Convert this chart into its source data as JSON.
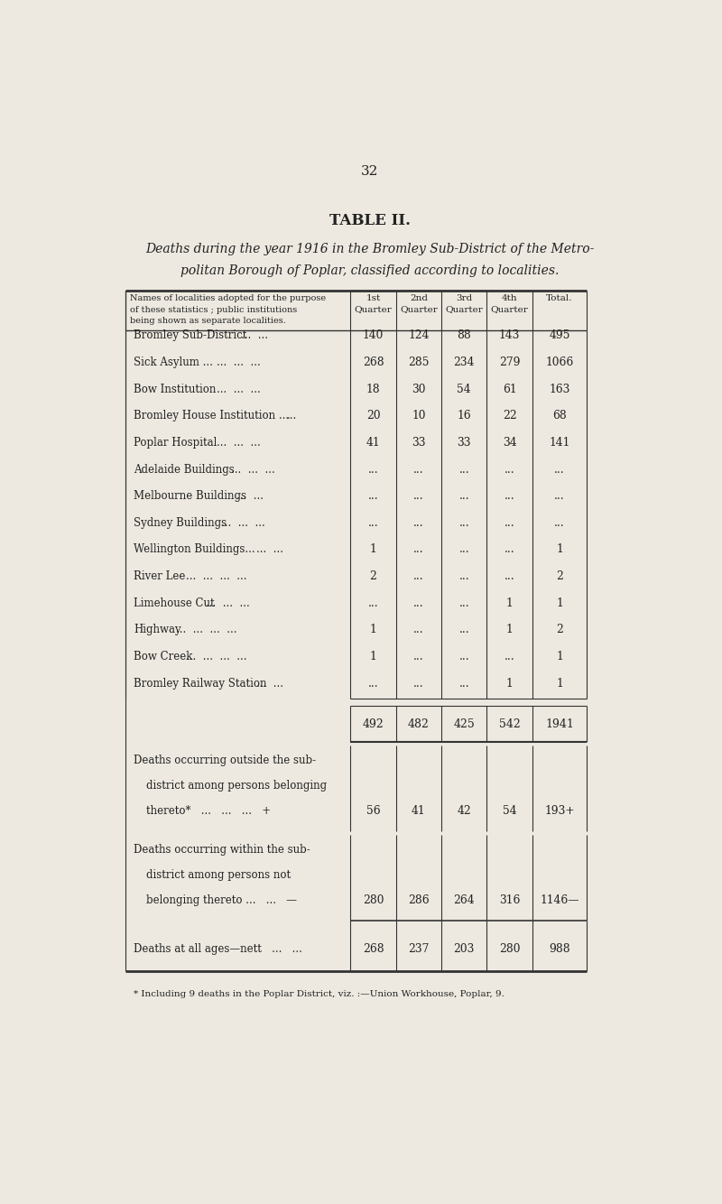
{
  "page_number": "32",
  "title": "TABLE II.",
  "subtitle_line1": "Deaths during the year 1916 in the Bromley Sub-District of the Metro-",
  "subtitle_line2": "politan Borough of Poplar, classified according to localities.",
  "data_rows": [
    {
      "name": "Bromley Sub-District",
      "dots": "...  ...",
      "q1": "140",
      "q2": "124",
      "q3": "88",
      "q4": "143",
      "total": "495"
    },
    {
      "name": "Sick Asylum ...",
      "dots": "...  ...  ...",
      "q1": "268",
      "q2": "285",
      "q3": "234",
      "q4": "279",
      "total": "1066"
    },
    {
      "name": "Bow Institution",
      "dots": "...  ...  ...",
      "q1": "18",
      "q2": "30",
      "q3": "54",
      "q4": "61",
      "total": "163"
    },
    {
      "name": "Bromley House Institution ...",
      "dots": "...",
      "q1": "20",
      "q2": "10",
      "q3": "16",
      "q4": "22",
      "total": "68"
    },
    {
      "name": "Poplar Hospital",
      "dots": "...  ...  ...",
      "q1": "41",
      "q2": "33",
      "q3": "33",
      "q4": "34",
      "total": "141"
    },
    {
      "name": "Adelaide Buildings",
      "dots": "...  ...  ...",
      "q1": "...",
      "q2": "...",
      "q3": "...",
      "q4": "...",
      "total": "..."
    },
    {
      "name": "Melbourne Buildings",
      "dots": "...  ...",
      "q1": "...",
      "q2": "...",
      "q3": "...",
      "q4": "...",
      "total": "..."
    },
    {
      "name": "Sydney Buildings",
      "dots": "...  ...  ...",
      "q1": "...",
      "q2": "...",
      "q3": "...",
      "q4": "...",
      "total": "..."
    },
    {
      "name": "Wellington Buildings...",
      "dots": "...  ...",
      "q1": "1",
      "q2": "...",
      "q3": "...",
      "q4": "...",
      "total": "1"
    },
    {
      "name": "River Lee",
      "dots": "...  ...  ...  ...",
      "q1": "2",
      "q2": "...",
      "q3": "...",
      "q4": "...",
      "total": "2"
    },
    {
      "name": "Limehouse Cut",
      "dots": "...  ...  ...",
      "q1": "...",
      "q2": "...",
      "q3": "...",
      "q4": "1",
      "total": "1"
    },
    {
      "name": "Highway",
      "dots": "...  ...  ...  ...",
      "q1": "1",
      "q2": "...",
      "q3": "...",
      "q4": "1",
      "total": "2"
    },
    {
      "name": "Bow Creek",
      "dots": "...  ...  ...  ...",
      "q1": "1",
      "q2": "...",
      "q3": "...",
      "q4": "...",
      "total": "1"
    },
    {
      "name": "Bromley Railway Station",
      "dots": "...  ...",
      "q1": "...",
      "q2": "...",
      "q3": "...",
      "q4": "1",
      "total": "1"
    }
  ],
  "totals_row": {
    "q1": "492",
    "q2": "482",
    "q3": "425",
    "q4": "542",
    "total": "1941"
  },
  "outside_label_lines": [
    "Deaths occurring outside the sub-",
    "district among persons belonging",
    "thereto*   ...   ...   ...   +"
  ],
  "outside_row": {
    "q1": "56",
    "q2": "41",
    "q3": "42",
    "q4": "54",
    "total": "193+"
  },
  "within_label_lines": [
    "Deaths occurring within the sub-",
    "district among persons not",
    "belonging thereto ...   ...   —"
  ],
  "within_row": {
    "q1": "280",
    "q2": "286",
    "q3": "264",
    "q4": "316",
    "total": "1146—"
  },
  "nett_label": "Deaths at all ages—nett   ...   ...",
  "nett_row": {
    "q1": "268",
    "q2": "237",
    "q3": "203",
    "q4": "280",
    "total": "988"
  },
  "footnote": "* Including 9 deaths in the Poplar District, viz. :—Union Workhouse, Poplar, 9.",
  "bg_color": "#ede9e0",
  "text_color": "#222222"
}
